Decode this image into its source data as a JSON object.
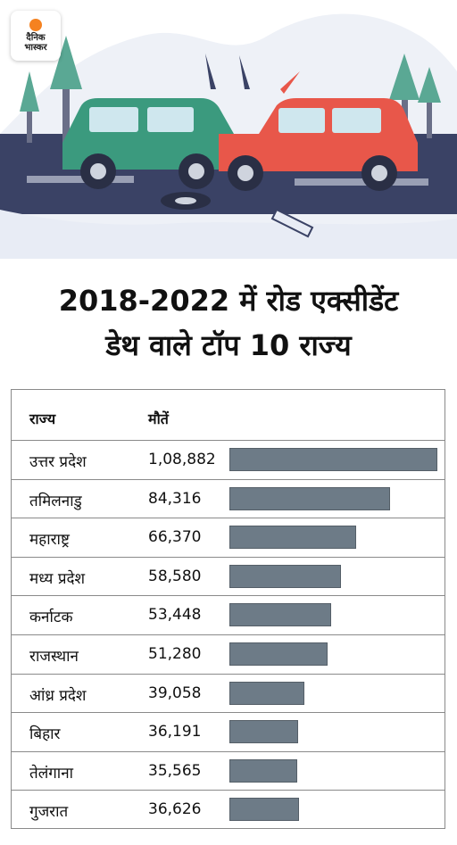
{
  "logo": {
    "line1": "दैनिक",
    "line2": "भास्कर"
  },
  "headline": {
    "line1": "2018-2022 में रोड एक्सीडेंट",
    "line2": "डेथ वाले टॉप 10 राज्य"
  },
  "chart_data": {
    "type": "bar",
    "orientation": "horizontal",
    "title": "2018-2022 में रोड एक्सीडेंट डेथ वाले टॉप 10 राज्य",
    "columns": [
      "राज्य",
      "मौतें"
    ],
    "categories": [
      "उत्तर प्रदेश",
      "तमिलनाडु",
      "महाराष्ट्र",
      "मध्य प्रदेश",
      "कर्नाटक",
      "राजस्थान",
      "आंध्र प्रदेश",
      "बिहार",
      "तेलंगाना",
      "गुजरात"
    ],
    "values": [
      108882,
      84316,
      66370,
      58580,
      53448,
      51280,
      39058,
      36191,
      35565,
      36626
    ],
    "labels": [
      "1,08,882",
      "84,316",
      "66,370",
      "58,580",
      "53,448",
      "51,280",
      "39,058",
      "36,191",
      "35,565",
      "36,626"
    ],
    "bar_color": "#6d7b87",
    "grid": false,
    "legend": "none"
  }
}
